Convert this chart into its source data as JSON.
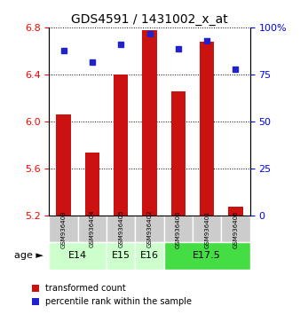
{
  "title": "GDS4591 / 1431002_x_at",
  "samples": [
    "GSM936403",
    "GSM936404",
    "GSM936405",
    "GSM936402",
    "GSM936400",
    "GSM936401",
    "GSM936406"
  ],
  "red_values": [
    6.06,
    5.74,
    6.4,
    6.78,
    6.26,
    6.68,
    5.28
  ],
  "blue_values": [
    88,
    82,
    91,
    97,
    89,
    93,
    78
  ],
  "age_groups": [
    {
      "label": "E14",
      "start": 0,
      "end": 2,
      "color": "#ccffcc"
    },
    {
      "label": "E15",
      "start": 2,
      "end": 3,
      "color": "#ccffcc"
    },
    {
      "label": "E16",
      "start": 3,
      "end": 4,
      "color": "#ccffcc"
    },
    {
      "label": "E17.5",
      "start": 4,
      "end": 7,
      "color": "#44dd44"
    }
  ],
  "ylim_left": [
    5.2,
    6.8
  ],
  "ylim_right": [
    0,
    100
  ],
  "yticks_left": [
    5.2,
    5.6,
    6.0,
    6.4,
    6.8
  ],
  "yticks_right": [
    0,
    25,
    50,
    75,
    100
  ],
  "ytick_labels_right": [
    "0",
    "25",
    "50",
    "75",
    "100%"
  ],
  "bar_color": "#cc1111",
  "dot_color": "#2222cc",
  "bar_width": 0.5,
  "legend_items": [
    {
      "color": "#cc1111",
      "label": "transformed count"
    },
    {
      "color": "#2222cc",
      "label": "percentile rank within the sample"
    }
  ]
}
